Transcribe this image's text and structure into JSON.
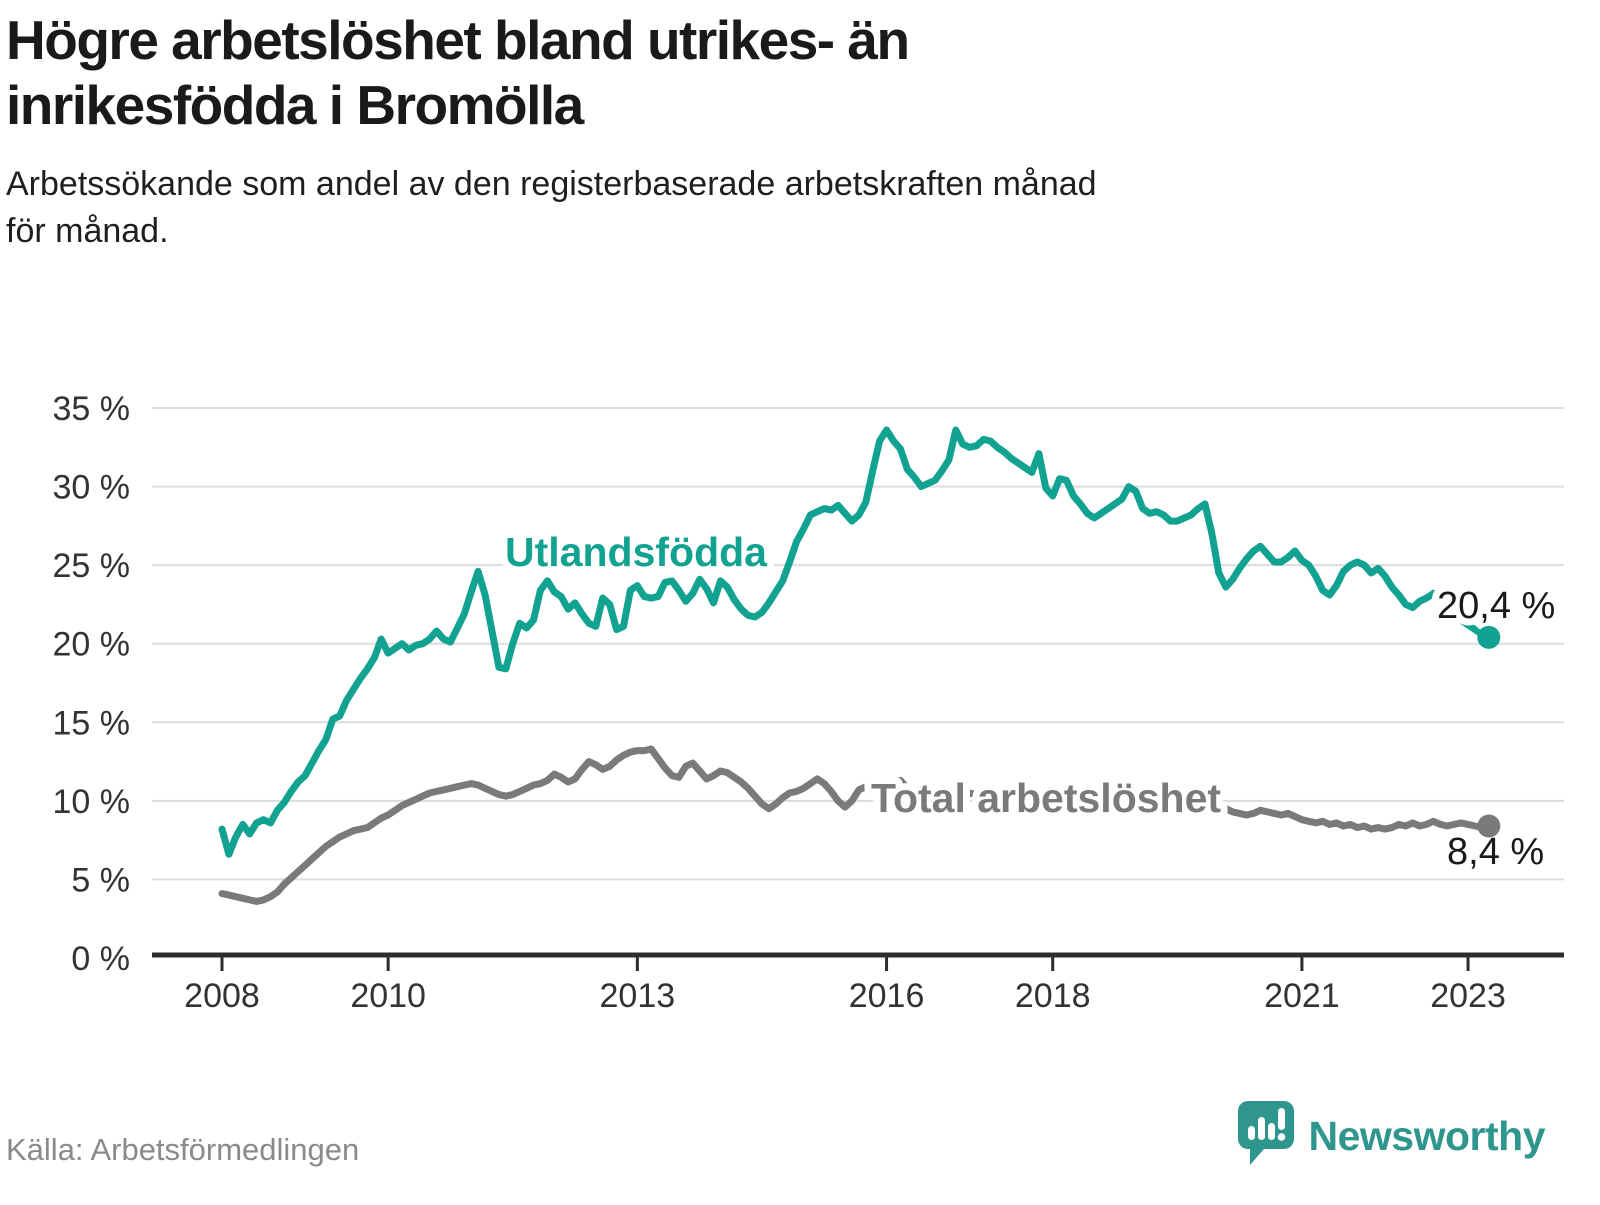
{
  "header": {
    "title": "Högre arbetslöshet bland utrikes- än\ninrikesfödda i Bromölla",
    "subtitle": "Arbetssökande som andel av den registerbaserade arbetskraften månad\nför månad."
  },
  "footer": {
    "source": "Källa: Arbetsförmedlingen",
    "brand_name": "Newsworthy",
    "brand_color": "#2f968e"
  },
  "chart_data": {
    "type": "line",
    "title": "Högre arbetslöshet bland utrikes- än inrikesfödda i Bromölla",
    "subtitle": "Arbetssökande som andel av den registerbaserade arbetskraften månad för månad.",
    "x_start_year": 2008,
    "x_months_per_point": 1,
    "x_tick_years": [
      2008,
      2010,
      2013,
      2016,
      2018,
      2021,
      2023
    ],
    "y_ticks": [
      {
        "value": 0,
        "label": "0 %"
      },
      {
        "value": 5,
        "label": "5 %"
      },
      {
        "value": 10,
        "label": "10 %"
      },
      {
        "value": 15,
        "label": "15 %"
      },
      {
        "value": 20,
        "label": "20 %"
      },
      {
        "value": 25,
        "label": "25 %"
      },
      {
        "value": 30,
        "label": "30 %"
      },
      {
        "value": 35,
        "label": "35 %"
      }
    ],
    "ylim": [
      0,
      35
    ],
    "grid": "horizontal",
    "legend_position": "inline-labels",
    "colors": {
      "grid": "#dcdcdc",
      "axis": "#2d2d2d",
      "tick_text": "#333333"
    },
    "series": [
      {
        "name": "Utlandsfödda",
        "color": "#12a292",
        "end_label": "20,4 %",
        "end_value": 20.4,
        "values": [
          8.2,
          6.6,
          7.7,
          8.5,
          7.9,
          8.6,
          8.8,
          8.6,
          9.4,
          9.9,
          10.6,
          11.2,
          11.6,
          12.4,
          13.2,
          13.9,
          15.2,
          15.4,
          16.4,
          17.1,
          17.8,
          18.4,
          19.1,
          20.3,
          19.4,
          19.7,
          20.0,
          19.6,
          19.9,
          20.0,
          20.3,
          20.8,
          20.3,
          20.1,
          21.0,
          21.9,
          23.3,
          24.6,
          23.1,
          20.8,
          18.5,
          18.4,
          20.0,
          21.3,
          21.0,
          21.5,
          23.4,
          24.0,
          23.3,
          23.0,
          22.2,
          22.6,
          21.9,
          21.3,
          21.1,
          22.9,
          22.5,
          20.9,
          21.1,
          23.4,
          23.7,
          23.0,
          22.9,
          23.0,
          23.9,
          24.0,
          23.4,
          22.7,
          23.2,
          24.1,
          23.5,
          22.6,
          24.0,
          23.6,
          22.8,
          22.2,
          21.8,
          21.7,
          22.0,
          22.6,
          23.3,
          24.0,
          25.2,
          26.5,
          27.3,
          28.2,
          28.4,
          28.6,
          28.5,
          28.8,
          28.3,
          27.8,
          28.2,
          29.0,
          31.0,
          32.9,
          33.6,
          32.9,
          32.4,
          31.1,
          30.6,
          30.0,
          30.2,
          30.4,
          31.0,
          31.7,
          33.6,
          32.7,
          32.5,
          32.6,
          33.0,
          32.9,
          32.5,
          32.2,
          31.8,
          31.5,
          31.2,
          30.9,
          32.1,
          29.9,
          29.4,
          30.5,
          30.4,
          29.4,
          28.9,
          28.3,
          28.0,
          28.3,
          28.6,
          28.9,
          29.2,
          30.0,
          29.7,
          28.6,
          28.3,
          28.4,
          28.2,
          27.8,
          27.8,
          28.0,
          28.2,
          28.6,
          28.9,
          27.0,
          24.5,
          23.6,
          24.1,
          24.8,
          25.4,
          25.9,
          26.2,
          25.7,
          25.2,
          25.2,
          25.5,
          25.9,
          25.3,
          25.0,
          24.3,
          23.4,
          23.1,
          23.7,
          24.6,
          25.0,
          25.2,
          25.0,
          24.5,
          24.8,
          24.3,
          23.6,
          23.1,
          22.5,
          22.3,
          22.7,
          22.9,
          23.2,
          22.8,
          22.3,
          21.9,
          21.5,
          21.2,
          20.9,
          20.6,
          20.4
        ]
      },
      {
        "name": "Total arbetslöshet",
        "color": "#7a7a7a",
        "end_label": "8,4 %",
        "end_value": 8.4,
        "values": [
          4.1,
          4.0,
          3.9,
          3.8,
          3.7,
          3.6,
          3.7,
          3.9,
          4.2,
          4.7,
          5.1,
          5.5,
          5.9,
          6.3,
          6.7,
          7.1,
          7.4,
          7.7,
          7.9,
          8.1,
          8.2,
          8.3,
          8.6,
          8.9,
          9.1,
          9.4,
          9.7,
          9.9,
          10.1,
          10.3,
          10.5,
          10.6,
          10.7,
          10.8,
          10.9,
          11.0,
          11.1,
          11.0,
          10.8,
          10.6,
          10.4,
          10.3,
          10.4,
          10.6,
          10.8,
          11.0,
          11.1,
          11.3,
          11.7,
          11.5,
          11.2,
          11.4,
          12.0,
          12.5,
          12.3,
          12.0,
          12.2,
          12.6,
          12.9,
          13.1,
          13.2,
          13.2,
          13.3,
          12.7,
          12.1,
          11.6,
          11.5,
          12.2,
          12.4,
          11.9,
          11.4,
          11.6,
          11.9,
          11.8,
          11.5,
          11.2,
          10.8,
          10.3,
          9.8,
          9.5,
          9.8,
          10.2,
          10.5,
          10.6,
          10.8,
          11.1,
          11.4,
          11.1,
          10.6,
          10.0,
          9.6,
          10.0,
          10.7,
          10.9,
          11.0,
          11.1,
          11.0,
          11.2,
          11.3,
          10.8,
          10.5,
          10.3,
          10.3,
          10.4,
          10.5,
          10.4,
          10.3,
          10.4,
          10.5,
          10.4,
          10.3,
          10.2,
          10.1,
          10.1,
          10.2,
          10.3,
          10.4,
          10.4,
          10.5,
          10.4,
          10.3,
          10.4,
          10.5,
          10.4,
          10.3,
          10.3,
          10.4,
          10.5,
          10.6,
          10.6,
          10.5,
          10.6,
          10.7,
          10.6,
          10.5,
          10.5,
          10.4,
          10.4,
          10.3,
          10.2,
          10.1,
          9.9,
          9.7,
          9.5,
          9.4,
          9.5,
          9.3,
          9.2,
          9.1,
          9.2,
          9.4,
          9.3,
          9.2,
          9.1,
          9.2,
          9.0,
          8.8,
          8.7,
          8.6,
          8.7,
          8.5,
          8.6,
          8.4,
          8.5,
          8.3,
          8.4,
          8.2,
          8.3,
          8.2,
          8.3,
          8.5,
          8.4,
          8.6,
          8.4,
          8.5,
          8.7,
          8.5,
          8.4,
          8.5,
          8.6,
          8.5,
          8.4,
          8.3,
          8.4
        ]
      }
    ]
  }
}
